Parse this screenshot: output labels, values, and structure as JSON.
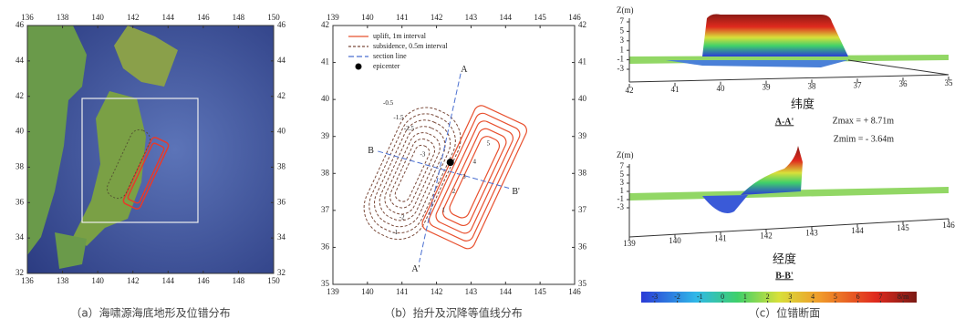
{
  "chart_data": [
    {
      "type": "map",
      "caption": "（a）海啸源海底地形及位错分布",
      "xlim": [
        136,
        150
      ],
      "xticks": [
        136,
        138,
        140,
        142,
        144,
        146,
        148,
        150
      ],
      "ylim": [
        32,
        46
      ],
      "yticks": [
        32,
        34,
        36,
        38,
        40,
        42,
        44,
        46
      ]
    },
    {
      "type": "contour",
      "caption": "（b）抬升及沉降等值线分布",
      "xlim": [
        139,
        146
      ],
      "xticks": [
        139,
        140,
        141,
        142,
        143,
        144,
        145,
        146
      ],
      "ylim": [
        35,
        42
      ],
      "yticks": [
        35,
        36,
        37,
        38,
        39,
        40,
        41,
        42
      ],
      "series": [
        {
          "name": "uplift, 1m interval",
          "color": "#e8502e"
        },
        {
          "name": "subsidence, 0.5m interval",
          "color": "#7a4a3a"
        },
        {
          "name": "section line",
          "color": "#4a6fd0"
        },
        {
          "name": "epicenter",
          "color": "#000000"
        }
      ],
      "section_labels": [
        "A",
        "A'",
        "B",
        "B'"
      ],
      "contour_labels": [
        "-0.5",
        "-1.5",
        "-2.5",
        "-3",
        "-1",
        "-2",
        "1",
        "2",
        "3",
        "4",
        "5"
      ],
      "epicenter": {
        "x": 142.4,
        "y": 38.3
      }
    },
    {
      "type": "surface",
      "caption": "（c）位错断面",
      "panels": [
        {
          "title": "A-A'",
          "xlabel": "纬度",
          "ylabel": "Z(m)",
          "xticks": [
            42,
            41,
            40,
            39,
            38,
            37,
            36,
            35
          ],
          "zticks": [
            7,
            5,
            3,
            1,
            -1,
            -3
          ]
        },
        {
          "title": "B-B'",
          "xlabel": "经度",
          "ylabel": "Z(m)",
          "xticks": [
            139,
            140,
            141,
            142,
            143,
            144,
            145,
            146
          ],
          "zticks": [
            7,
            5,
            3,
            1,
            -1,
            -3
          ]
        }
      ],
      "annotations": [
        "Zmax = + 8.71m",
        "Zmim = - 3.64m"
      ],
      "colorbar": {
        "clim": [
          -3.6,
          8.6
        ],
        "ticks": [
          -3,
          -2,
          -1,
          0,
          1,
          2,
          3,
          4,
          5,
          6,
          7,
          {
            "value": 8,
            "label": "8/m"
          }
        ]
      }
    }
  ]
}
